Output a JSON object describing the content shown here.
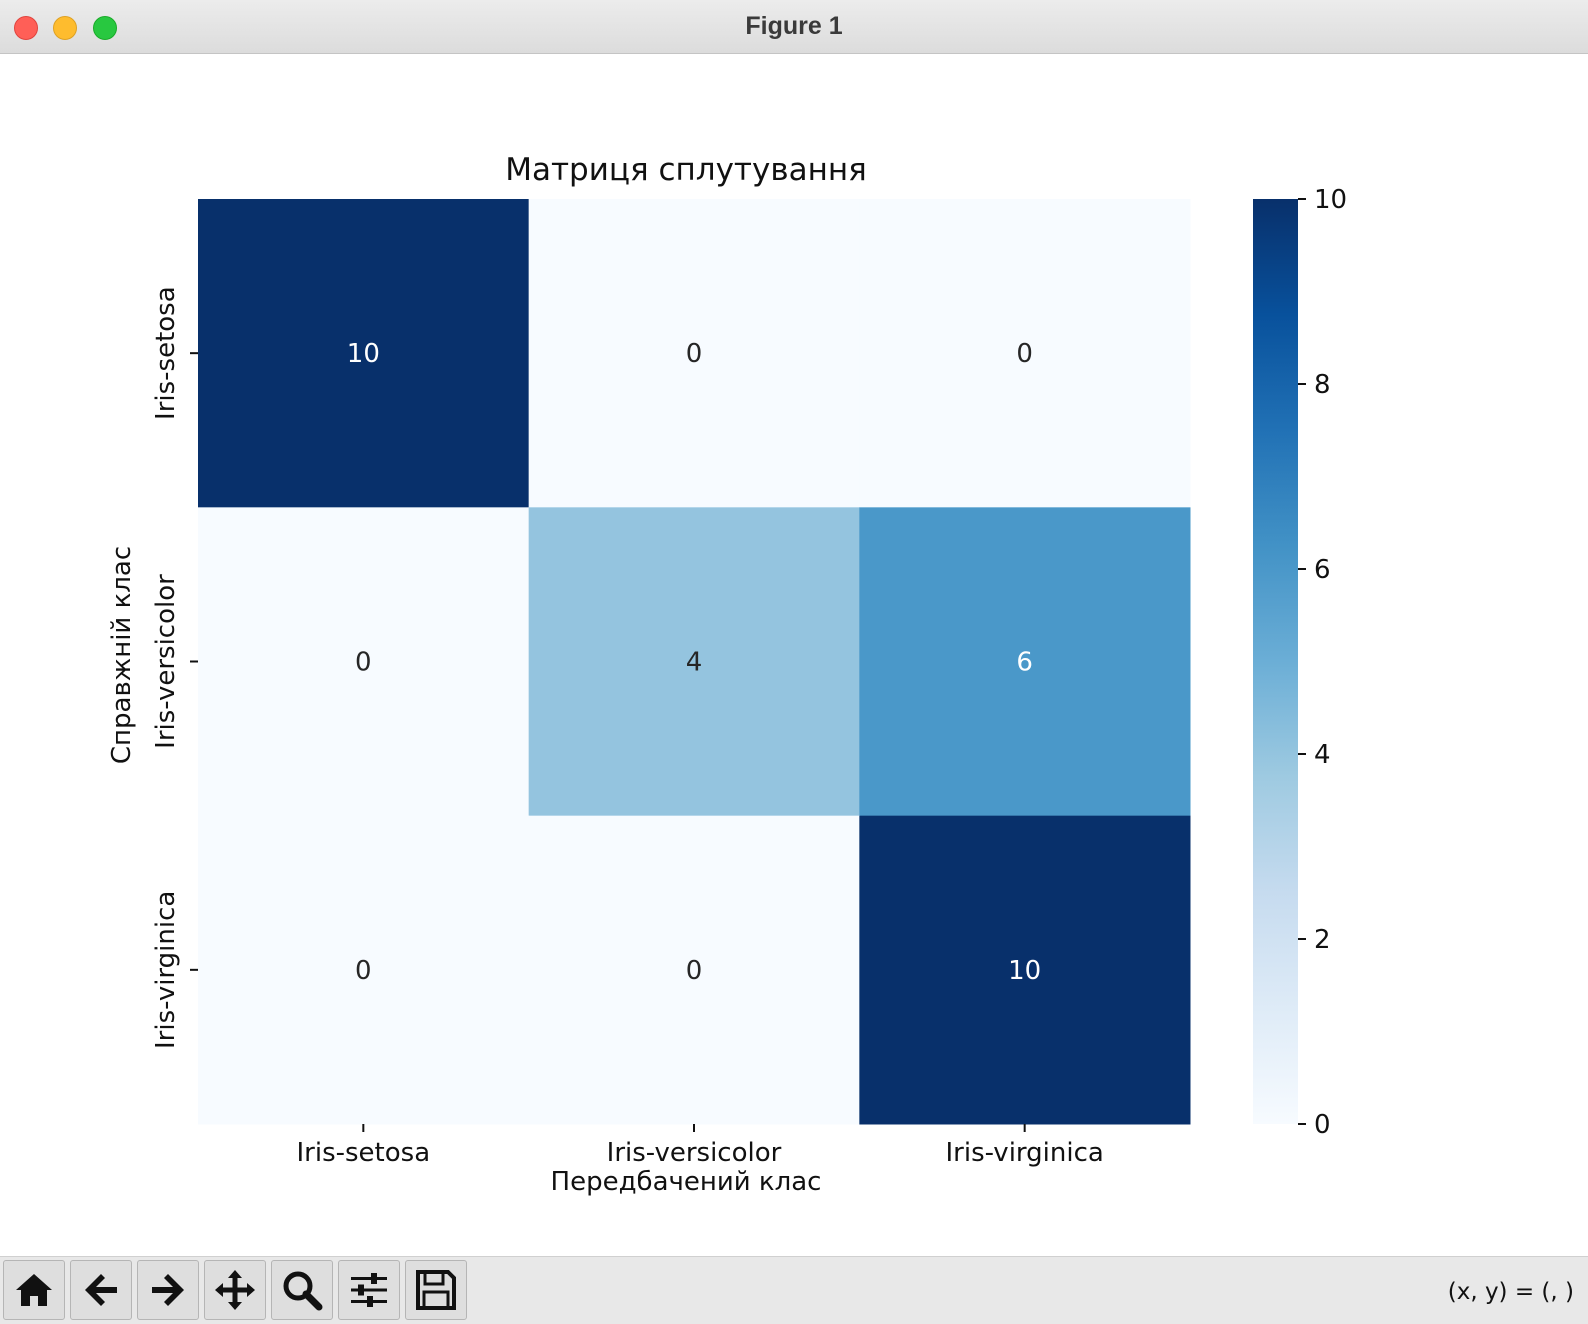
{
  "window": {
    "title": "Figure 1"
  },
  "toolbar": {
    "buttons": [
      {
        "name": "home-icon"
      },
      {
        "name": "back-arrow-icon"
      },
      {
        "name": "forward-arrow-icon"
      },
      {
        "name": "pan-move-icon"
      },
      {
        "name": "zoom-magnifier-icon"
      },
      {
        "name": "configure-subplots-icon"
      },
      {
        "name": "save-figure-icon"
      }
    ],
    "coords": "(x, y) = (, )"
  },
  "chart_data": {
    "type": "heatmap",
    "title": "Матриця сплутування",
    "xlabel": "Передбачений клас",
    "ylabel": "Справжній клас",
    "x_categories": [
      "Iris-setosa",
      "Iris-versicolor",
      "Iris-virginica"
    ],
    "y_categories": [
      "Iris-setosa",
      "Iris-versicolor",
      "Iris-virginica"
    ],
    "values": [
      [
        10,
        0,
        0
      ],
      [
        0,
        4,
        6
      ],
      [
        0,
        0,
        10
      ]
    ],
    "annotations": true,
    "colormap": "Blues",
    "colorbar": {
      "min": 0,
      "max": 10,
      "ticks": [
        0,
        2,
        4,
        6,
        8,
        10
      ]
    }
  }
}
